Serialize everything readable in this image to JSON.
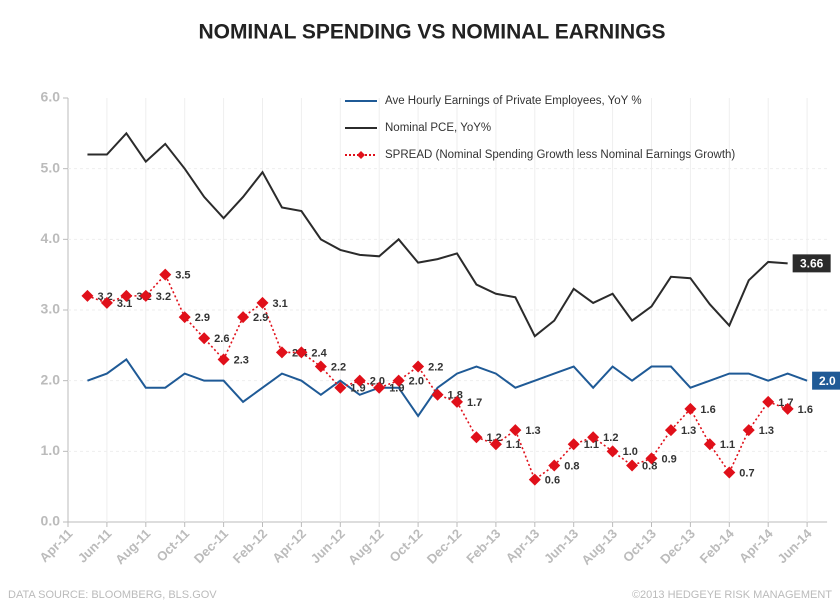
{
  "chart_data": {
    "type": "line",
    "title": "NOMINAL SPENDING VS NOMINAL EARNINGS",
    "categories": [
      "Apr-11",
      null,
      "Jun-11",
      null,
      "Aug-11",
      null,
      "Oct-11",
      null,
      "Dec-11",
      null,
      "Feb-12",
      null,
      "Apr-12",
      null,
      "Jun-12",
      null,
      "Aug-12",
      null,
      "Oct-12",
      null,
      "Dec-12",
      null,
      "Feb-13",
      null,
      "Apr-13",
      null,
      "Jun-13",
      null,
      "Aug-13",
      null,
      "Oct-13",
      null,
      "Dec-13",
      null,
      "Feb-14",
      null,
      "Apr-14",
      null,
      "Jun-14"
    ],
    "series": [
      {
        "name": "Ave Hourly Earnings of Private Employees,  YoY %",
        "color": "#1f5a96",
        "style": "solid",
        "values": [
          null,
          2.0,
          2.1,
          2.3,
          1.9,
          1.9,
          2.1,
          2.0,
          2.0,
          1.7,
          1.9,
          2.1,
          2.0,
          1.8,
          2.0,
          1.8,
          1.9,
          1.9,
          1.5,
          1.9,
          2.1,
          2.2,
          2.1,
          1.9,
          2.0,
          2.1,
          2.2,
          1.9,
          2.2,
          2.0,
          2.2,
          2.2,
          1.9,
          2.0,
          2.1,
          2.1,
          2.0,
          2.1,
          2.0
        ],
        "value_labels": [
          null,
          null,
          null,
          null,
          null,
          null,
          null,
          null,
          null,
          null,
          null,
          null,
          null,
          null,
          null,
          null,
          null,
          null,
          null,
          null,
          null,
          null,
          null,
          null,
          null,
          null,
          null,
          null,
          null,
          null,
          null,
          null,
          null,
          null,
          null,
          null,
          null,
          null,
          "2.0"
        ]
      },
      {
        "name": "Nominal PCE,  YoY%",
        "color": "#2b2b2b",
        "style": "solid",
        "values": [
          null,
          5.2,
          5.2,
          5.5,
          5.1,
          5.35,
          5.0,
          4.6,
          4.3,
          4.6,
          4.95,
          4.45,
          4.4,
          4.0,
          3.85,
          3.78,
          3.76,
          4.0,
          3.67,
          3.72,
          3.8,
          3.36,
          3.23,
          3.18,
          2.63,
          2.85,
          3.3,
          3.1,
          3.23,
          2.85,
          3.05,
          3.47,
          3.45,
          3.08,
          2.78,
          3.42,
          3.68,
          3.66,
          null
        ],
        "value_labels": [
          null,
          null,
          null,
          null,
          null,
          null,
          null,
          null,
          null,
          null,
          null,
          null,
          null,
          null,
          null,
          null,
          null,
          null,
          null,
          null,
          null,
          null,
          null,
          null,
          null,
          null,
          null,
          null,
          null,
          null,
          null,
          null,
          null,
          null,
          null,
          null,
          null,
          "3.66",
          null
        ]
      },
      {
        "name": "SPREAD (Nominal Spending  Growth less Nominal Earnings Growth)",
        "color": "#e0101a",
        "style": "dotted-diamond",
        "values": [
          null,
          3.2,
          3.1,
          3.2,
          3.2,
          3.5,
          2.9,
          2.6,
          2.3,
          2.9,
          3.1,
          2.4,
          2.4,
          2.2,
          1.9,
          2.0,
          1.9,
          2.0,
          2.2,
          1.8,
          1.7,
          1.2,
          1.1,
          1.3,
          0.6,
          0.8,
          1.1,
          1.2,
          1.0,
          0.8,
          0.9,
          1.3,
          1.6,
          1.1,
          0.7,
          1.3,
          1.7,
          1.6,
          null
        ],
        "value_labels": [
          null,
          "3.2",
          "3.1",
          "3.2",
          "3.2",
          "3.5",
          "2.9",
          "2.6",
          "2.3",
          "2.9",
          "3.1",
          "2.4",
          "2.4",
          "2.2",
          "1.9",
          "2.0",
          "1.9",
          "2.0",
          "2.2",
          "1.8",
          "1.7",
          "1.2",
          "1.1",
          "1.3",
          "0.6",
          "0.8",
          "1.1",
          "1.2",
          "1.0",
          "0.8",
          "0.9",
          "1.3",
          "1.6",
          "1.1",
          "0.7",
          "1.3",
          "1.7",
          "1.6",
          null
        ]
      }
    ],
    "ylim": [
      0,
      6
    ],
    "yticks": [
      {
        "value": 0,
        "label": "0.0"
      },
      {
        "value": 1,
        "label": "1.0"
      },
      {
        "value": 2,
        "label": "2.0"
      },
      {
        "value": 3,
        "label": "3.0"
      },
      {
        "value": 4,
        "label": "4.0"
      },
      {
        "value": 5,
        "label": "5.0"
      },
      {
        "value": 6,
        "label": "6.0"
      }
    ],
    "grid": true,
    "legend": "top",
    "source": "DATA SOURCE:  BLOOMBERG,  BLS.GOV",
    "copyright": "©2013 HEDGEYE  RISK MANAGEMENT"
  }
}
